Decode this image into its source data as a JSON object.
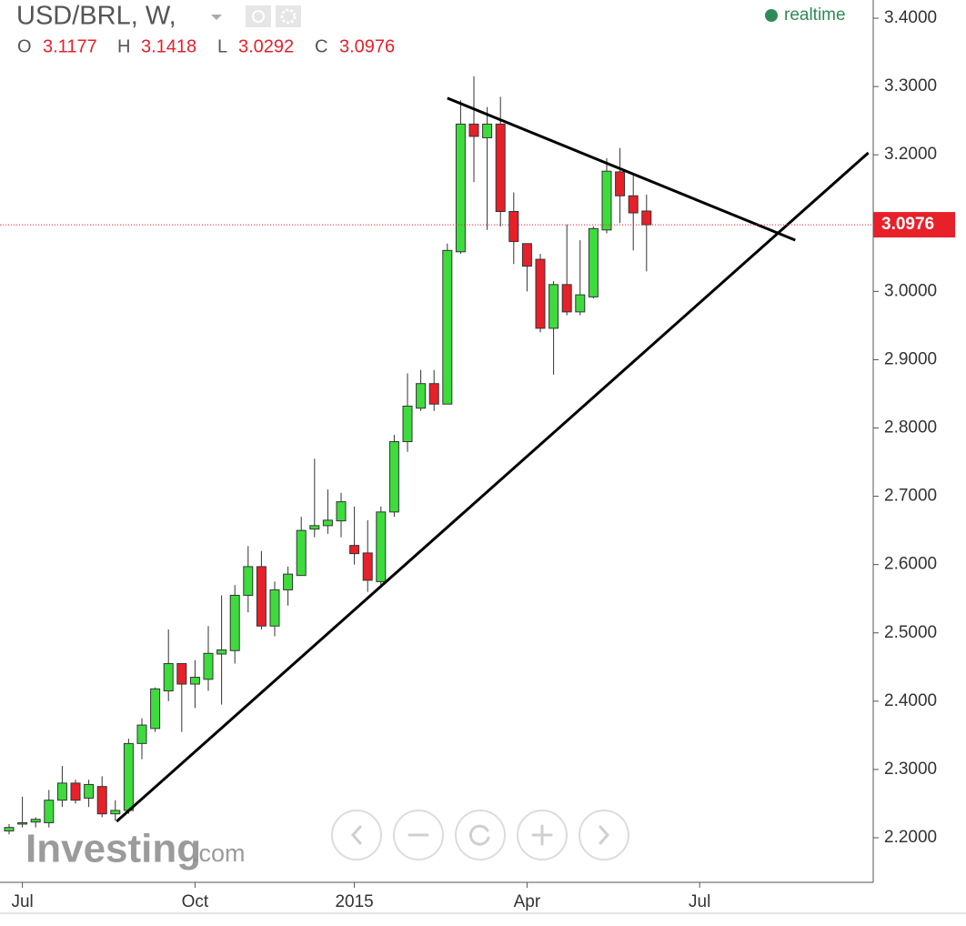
{
  "chart_data": {
    "type": "candlestick",
    "title": "USD/BRL, W,",
    "status": "realtime",
    "watermark": [
      "Investing",
      ".com"
    ],
    "ohlc_labels": [
      "O",
      "H",
      "L",
      "C"
    ],
    "categories": [
      null,
      "Jul",
      null,
      null,
      null,
      null,
      null,
      null,
      null,
      null,
      null,
      null,
      null,
      null,
      "Oct",
      null,
      null,
      null,
      null,
      null,
      null,
      null,
      null,
      null,
      null,
      null,
      "2015",
      null,
      null,
      null,
      null,
      null,
      null,
      null,
      null,
      null,
      null,
      null,
      null,
      "Apr",
      null,
      null,
      null,
      null,
      null,
      null,
      null,
      null,
      null,
      null,
      null,
      null,
      "Jul"
    ],
    "open": [
      2.21,
      2.22,
      2.223,
      2.222,
      2.255,
      2.28,
      2.258,
      2.275,
      2.235,
      2.24,
      2.338,
      2.36,
      2.415,
      2.455,
      2.425,
      2.432,
      2.469,
      2.474,
      2.555,
      2.597,
      2.51,
      2.563,
      2.584,
      2.652,
      2.657,
      2.664,
      2.628,
      2.617,
      2.575,
      2.677,
      2.78,
      2.829,
      2.865,
      2.835,
      3.058,
      3.245,
      3.225,
      3.245,
      3.117,
      3.07,
      3.047,
      2.946,
      3.01,
      2.97,
      2.992,
      3.09,
      3.175,
      3.14,
      3.1177,
      null,
      null,
      null,
      null
    ],
    "high": [
      2.22,
      2.26,
      2.23,
      2.27,
      2.305,
      2.285,
      2.285,
      2.29,
      2.255,
      2.345,
      2.375,
      2.42,
      2.505,
      2.455,
      2.46,
      2.51,
      2.555,
      2.57,
      2.627,
      2.62,
      2.575,
      2.597,
      2.67,
      2.755,
      2.71,
      2.705,
      2.685,
      2.665,
      2.685,
      2.79,
      2.88,
      2.885,
      2.885,
      3.07,
      3.28,
      3.315,
      3.27,
      3.285,
      3.145,
      3.07,
      3.055,
      3.015,
      3.098,
      3.075,
      3.095,
      3.195,
      3.21,
      3.17,
      3.1418,
      null,
      null,
      null,
      null
    ],
    "low": [
      2.205,
      2.215,
      2.215,
      2.215,
      2.245,
      2.25,
      2.245,
      2.23,
      2.225,
      2.235,
      2.315,
      2.355,
      2.4,
      2.355,
      2.39,
      2.415,
      2.395,
      2.455,
      2.53,
      2.505,
      2.495,
      2.54,
      2.585,
      2.64,
      2.645,
      2.64,
      2.6,
      2.56,
      2.57,
      2.67,
      2.765,
      2.825,
      2.825,
      2.835,
      3.055,
      3.16,
      3.09,
      3.095,
      3.04,
      3.0,
      2.94,
      2.878,
      2.965,
      2.965,
      2.99,
      3.085,
      3.1,
      3.06,
      3.0292,
      null,
      null,
      null,
      null
    ],
    "close": [
      2.215,
      2.222,
      2.227,
      2.255,
      2.28,
      2.255,
      2.278,
      2.235,
      2.24,
      2.338,
      2.365,
      2.418,
      2.455,
      2.425,
      2.435,
      2.47,
      2.475,
      2.555,
      2.597,
      2.51,
      2.563,
      2.586,
      2.65,
      2.657,
      2.665,
      2.692,
      2.616,
      2.577,
      2.677,
      2.78,
      2.832,
      2.865,
      2.835,
      3.06,
      3.245,
      3.227,
      3.245,
      3.117,
      3.073,
      3.037,
      2.946,
      3.01,
      2.97,
      2.995,
      3.092,
      3.176,
      3.14,
      3.115,
      3.0976,
      null,
      null,
      null,
      null
    ],
    "last_label": "3.0976",
    "up_color": "#3ddc3d",
    "down_color": "#e8202a",
    "trendlines": [
      {
        "x": [
          8.1,
          64.7
        ],
        "y": [
          2.224,
          3.203
        ],
        "color": "#000000"
      },
      {
        "x": [
          33.0,
          59.2
        ],
        "y": [
          3.283,
          3.075
        ],
        "color": "#000000"
      }
    ],
    "ylim": [
      2.1347,
      3.4267
    ],
    "yticks": [
      {
        "value": 2.2,
        "label": "2.2000"
      },
      {
        "value": 2.3,
        "label": "2.3000"
      },
      {
        "value": 2.4,
        "label": "2.4000"
      },
      {
        "value": 2.5,
        "label": "2.5000"
      },
      {
        "value": 2.6,
        "label": "2.6000"
      },
      {
        "value": 2.7,
        "label": "2.7000"
      },
      {
        "value": 2.8,
        "label": "2.8000"
      },
      {
        "value": 2.9,
        "label": "2.9000"
      },
      {
        "value": 3.0,
        "label": "3.0000"
      },
      {
        "value": 3.1,
        "label": "3.1000"
      },
      {
        "value": 3.2,
        "label": "3.2000"
      },
      {
        "value": 3.3,
        "label": "3.3000"
      },
      {
        "value": 3.4,
        "label": "3.4000"
      }
    ],
    "grid": false
  }
}
